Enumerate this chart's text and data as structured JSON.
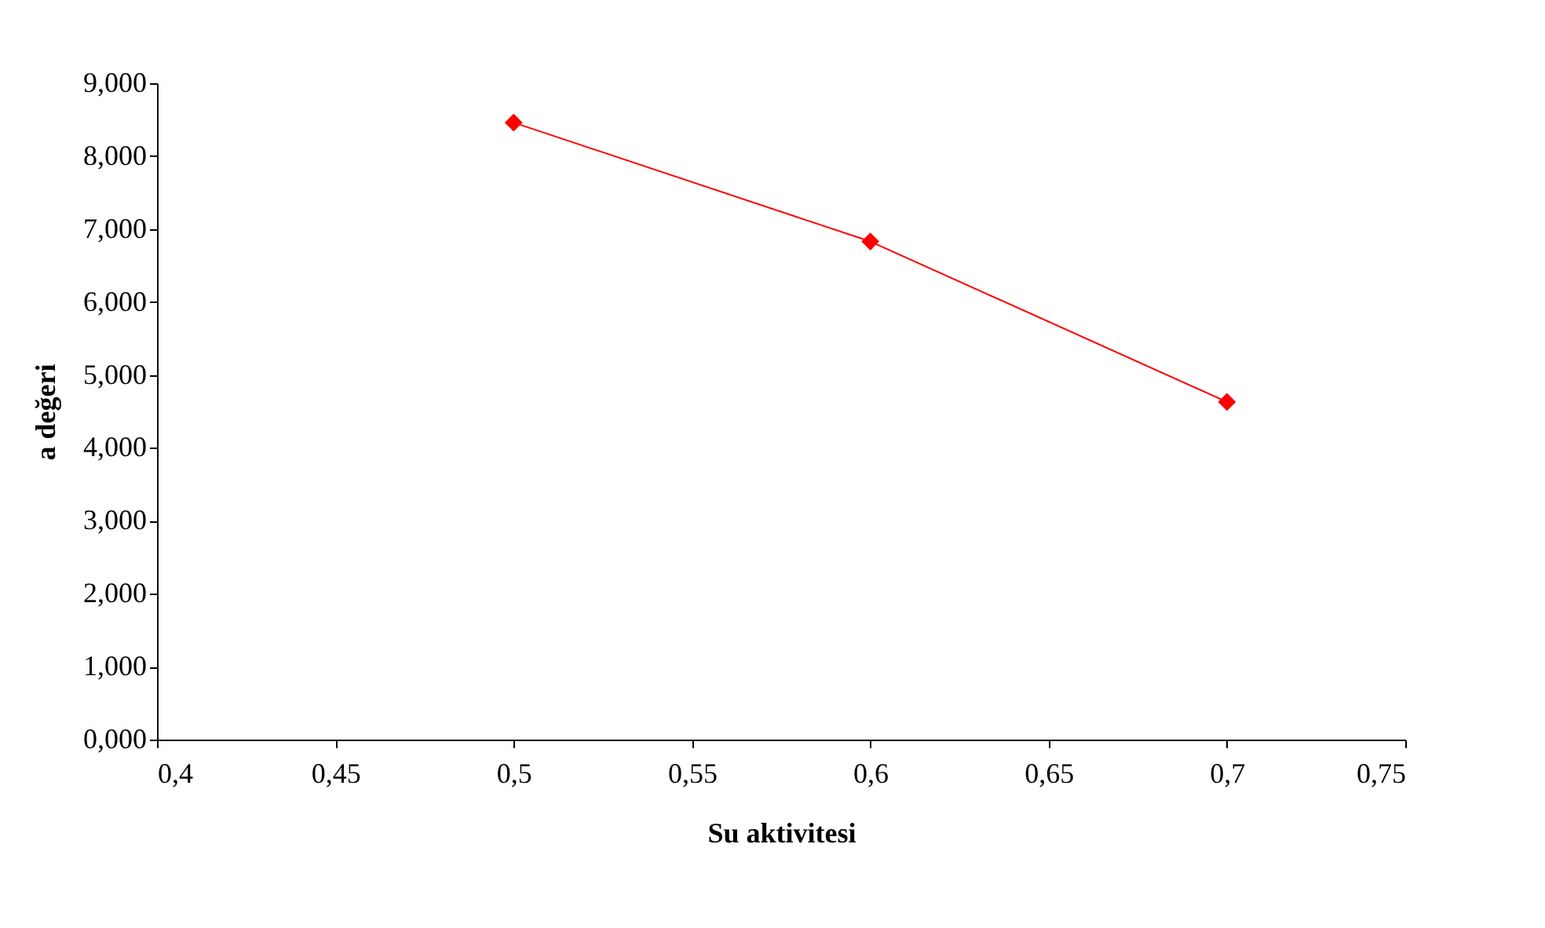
{
  "chart_data": {
    "type": "line",
    "xlabel": "Su aktivitesi",
    "ylabel": "a değeri",
    "x": [
      0.5,
      0.6,
      0.7
    ],
    "series": [
      {
        "color": "#ff0000",
        "values": [
          8.46,
          6.83,
          4.63
        ]
      }
    ],
    "xlim": [
      0.4,
      0.75
    ],
    "xticks": [
      {
        "value": 0.4,
        "label": "0,4"
      },
      {
        "value": 0.45,
        "label": "0,45"
      },
      {
        "value": 0.5,
        "label": "0,5"
      },
      {
        "value": 0.55,
        "label": "0,55"
      },
      {
        "value": 0.6,
        "label": "0,6"
      },
      {
        "value": 0.65,
        "label": "0,65"
      },
      {
        "value": 0.7,
        "label": "0,7"
      },
      {
        "value": 0.75,
        "label": "0,75"
      }
    ],
    "ylim": [
      0,
      9
    ],
    "yticks": [
      {
        "value": 0,
        "label": "0,000"
      },
      {
        "value": 1,
        "label": "1,000"
      },
      {
        "value": 2,
        "label": "2,000"
      },
      {
        "value": 3,
        "label": "3,000"
      },
      {
        "value": 4,
        "label": "4,000"
      },
      {
        "value": 5,
        "label": "5,000"
      },
      {
        "value": 6,
        "label": "6,000"
      },
      {
        "value": 7,
        "label": "7,000"
      },
      {
        "value": 8,
        "label": "8,000"
      },
      {
        "value": 9,
        "label": "9,000"
      }
    ],
    "grid": false,
    "marker": "diamond",
    "line_style": "solid"
  }
}
